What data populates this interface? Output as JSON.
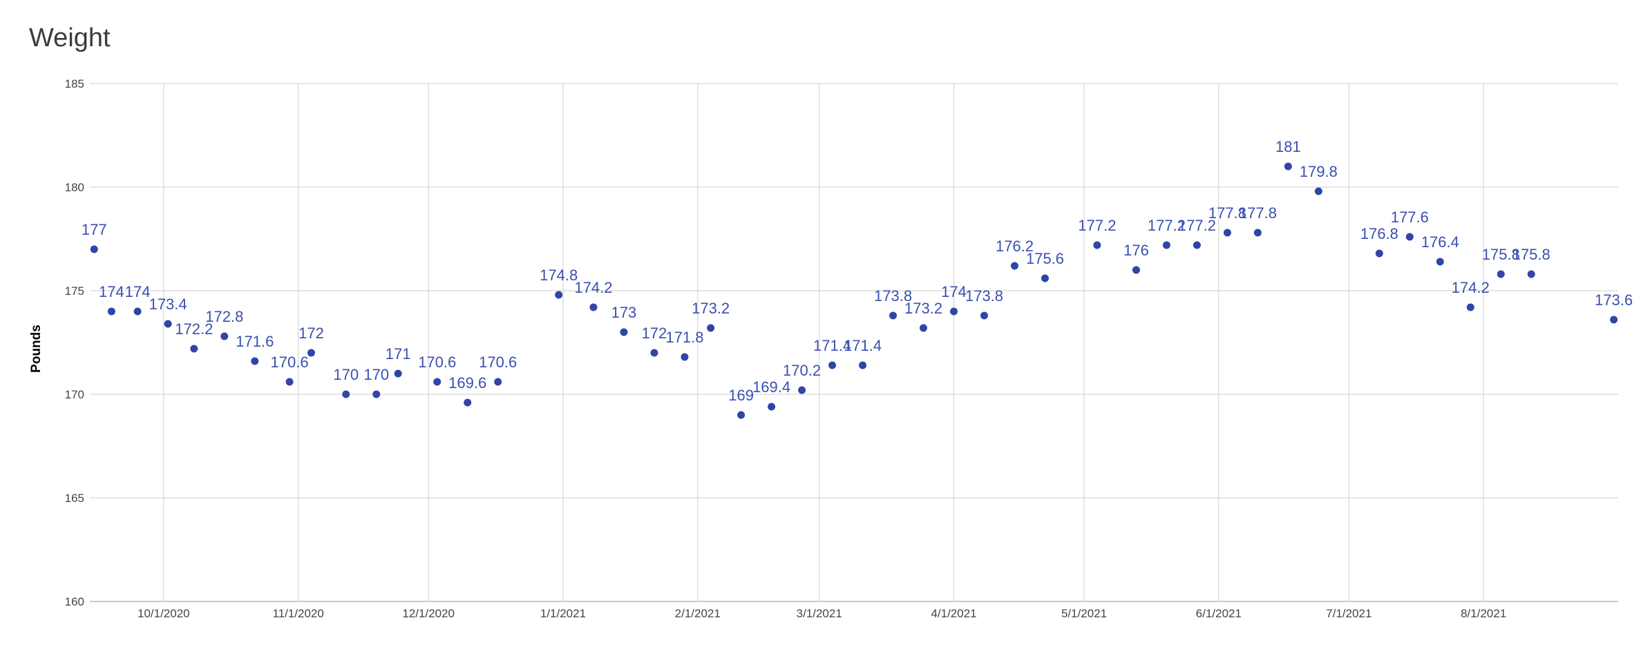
{
  "chart_data": {
    "type": "scatter",
    "title": "Weight",
    "xlabel": "",
    "ylabel": "Pounds",
    "xlim": [
      "2020-09-14",
      "2021-09-01"
    ],
    "ylim": [
      160,
      185
    ],
    "y_ticks": [
      160,
      165,
      170,
      175,
      180,
      185
    ],
    "x_ticks": [
      {
        "date": "2020-10-01",
        "label": "10/1/2020"
      },
      {
        "date": "2020-11-01",
        "label": "11/1/2020"
      },
      {
        "date": "2020-12-01",
        "label": "12/1/2020"
      },
      {
        "date": "2021-01-01",
        "label": "1/1/2021"
      },
      {
        "date": "2021-02-01",
        "label": "2/1/2021"
      },
      {
        "date": "2021-03-01",
        "label": "3/1/2021"
      },
      {
        "date": "2021-04-01",
        "label": "4/1/2021"
      },
      {
        "date": "2021-05-01",
        "label": "5/1/2021"
      },
      {
        "date": "2021-06-01",
        "label": "6/1/2021"
      },
      {
        "date": "2021-07-01",
        "label": "7/1/2021"
      },
      {
        "date": "2021-08-01",
        "label": "8/1/2021"
      }
    ],
    "grid": true,
    "legend": "none",
    "marker_color": "#2f45a8",
    "label_color": "#3a4fb0",
    "points": [
      {
        "x": "2020-09-15",
        "y": 177,
        "label": "177"
      },
      {
        "x": "2020-09-19",
        "y": 174,
        "label": "174"
      },
      {
        "x": "2020-09-25",
        "y": 174,
        "label": "174"
      },
      {
        "x": "2020-10-02",
        "y": 173.4,
        "label": "173.4"
      },
      {
        "x": "2020-10-08",
        "y": 172.2,
        "label": "172.2"
      },
      {
        "x": "2020-10-15",
        "y": 172.8,
        "label": "172.8"
      },
      {
        "x": "2020-10-22",
        "y": 171.6,
        "label": "171.6"
      },
      {
        "x": "2020-10-30",
        "y": 170.6,
        "label": "170.6"
      },
      {
        "x": "2020-11-04",
        "y": 172,
        "label": "172"
      },
      {
        "x": "2020-11-12",
        "y": 170,
        "label": "170"
      },
      {
        "x": "2020-11-19",
        "y": 170,
        "label": "170"
      },
      {
        "x": "2020-11-24",
        "y": 171,
        "label": "171"
      },
      {
        "x": "2020-12-03",
        "y": 170.6,
        "label": "170.6"
      },
      {
        "x": "2020-12-10",
        "y": 169.6,
        "label": "169.6"
      },
      {
        "x": "2020-12-17",
        "y": 170.6,
        "label": "170.6"
      },
      {
        "x": "2020-12-31",
        "y": 174.8,
        "label": "174.8"
      },
      {
        "x": "2021-01-08",
        "y": 174.2,
        "label": "174.2"
      },
      {
        "x": "2021-01-15",
        "y": 173,
        "label": "173"
      },
      {
        "x": "2021-01-22",
        "y": 172,
        "label": "172"
      },
      {
        "x": "2021-01-29",
        "y": 171.8,
        "label": "171.8"
      },
      {
        "x": "2021-02-04",
        "y": 173.2,
        "label": "173.2"
      },
      {
        "x": "2021-02-11",
        "y": 169,
        "label": "169"
      },
      {
        "x": "2021-02-18",
        "y": 169.4,
        "label": "169.4"
      },
      {
        "x": "2021-02-25",
        "y": 170.2,
        "label": "170.2"
      },
      {
        "x": "2021-03-04",
        "y": 171.4,
        "label": "171.4"
      },
      {
        "x": "2021-03-11",
        "y": 171.4,
        "label": "171.4"
      },
      {
        "x": "2021-03-18",
        "y": 173.8,
        "label": "173.8"
      },
      {
        "x": "2021-03-25",
        "y": 173.2,
        "label": "173.2"
      },
      {
        "x": "2021-04-01",
        "y": 174,
        "label": "174"
      },
      {
        "x": "2021-04-08",
        "y": 173.8,
        "label": "173.8"
      },
      {
        "x": "2021-04-15",
        "y": 176.2,
        "label": "176.2"
      },
      {
        "x": "2021-04-22",
        "y": 175.6,
        "label": "175.6"
      },
      {
        "x": "2021-05-04",
        "y": 177.2,
        "label": "177.2"
      },
      {
        "x": "2021-05-13",
        "y": 176,
        "label": "176"
      },
      {
        "x": "2021-05-20",
        "y": 177.2,
        "label": "177.2"
      },
      {
        "x": "2021-05-27",
        "y": 177.2,
        "label": "177.2"
      },
      {
        "x": "2021-06-03",
        "y": 177.8,
        "label": "177.8"
      },
      {
        "x": "2021-06-10",
        "y": 177.8,
        "label": "177.8"
      },
      {
        "x": "2021-06-17",
        "y": 181,
        "label": "181"
      },
      {
        "x": "2021-06-24",
        "y": 179.8,
        "label": "179.8"
      },
      {
        "x": "2021-07-08",
        "y": 176.8,
        "label": "176.8"
      },
      {
        "x": "2021-07-15",
        "y": 177.6,
        "label": "177.6"
      },
      {
        "x": "2021-07-22",
        "y": 176.4,
        "label": "176.4"
      },
      {
        "x": "2021-07-29",
        "y": 174.2,
        "label": "174.2"
      },
      {
        "x": "2021-08-05",
        "y": 175.8,
        "label": "175.8"
      },
      {
        "x": "2021-08-12",
        "y": 175.8,
        "label": "175.8"
      },
      {
        "x": "2021-08-31",
        "y": 173.6,
        "label": "173.6"
      }
    ]
  }
}
